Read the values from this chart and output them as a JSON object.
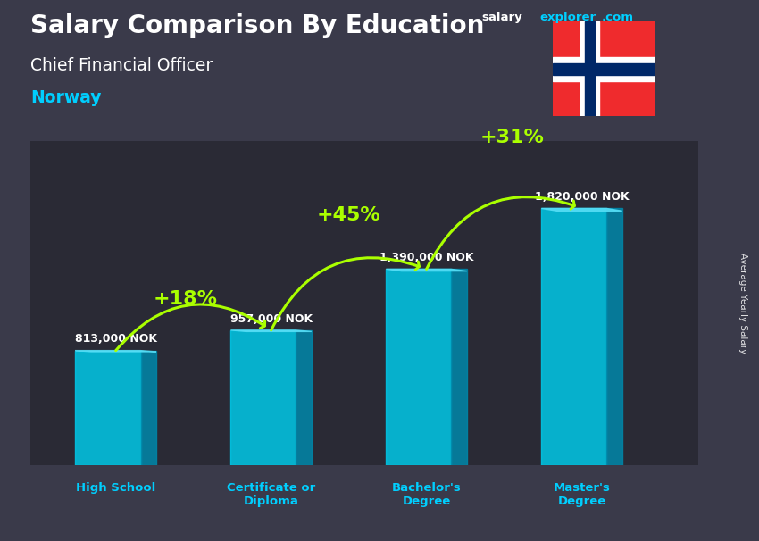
{
  "title_part1": "Salary Comparison By Education",
  "subtitle": "Chief Financial Officer",
  "country": "Norway",
  "ylabel": "Average Yearly Salary",
  "watermark_salary": "salary",
  "watermark_explorer": "explorer",
  "watermark_com": ".com",
  "categories": [
    "High School",
    "Certificate or\nDiploma",
    "Bachelor's\nDegree",
    "Master's\nDegree"
  ],
  "values": [
    813000,
    957000,
    1390000,
    1820000
  ],
  "value_labels": [
    "813,000 NOK",
    "957,000 NOK",
    "1,390,000 NOK",
    "1,820,000 NOK"
  ],
  "pct_labels": [
    "+18%",
    "+45%",
    "+31%"
  ],
  "bar_face_color": "#00c8e8",
  "bar_side_color": "#0088aa",
  "bar_top_color": "#55ddf5",
  "title_color": "#ffffff",
  "subtitle_color": "#ffffff",
  "country_color": "#00cfff",
  "value_label_color": "#ffffff",
  "pct_color": "#aaff00",
  "bg_color": "#3a3a4a",
  "watermark_salary_color": "#ffffff",
  "watermark_explorer_color": "#00cfff",
  "watermark_com_color": "#00cfff",
  "flag_red": "#EF2B2D",
  "flag_blue": "#002868",
  "ylim_max": 2300000,
  "bar_positions": [
    0,
    1,
    2,
    3
  ],
  "bar_width": 0.42,
  "bar_depth": 0.1
}
